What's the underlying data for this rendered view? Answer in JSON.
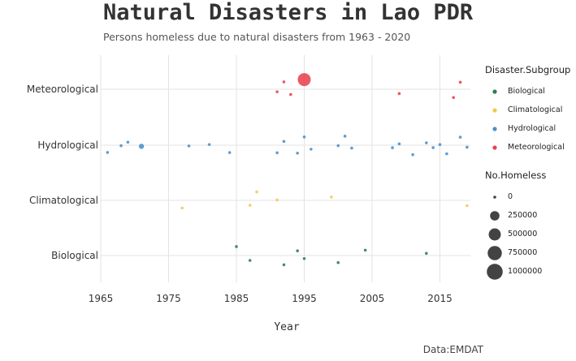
{
  "title": "Natural Disasters in Lao PDR",
  "subtitle": "Persons homeless due to natural disasters from 1963 - 2020",
  "caption": "Data:EMDAT",
  "colors": {
    "Biological": "#2e7d4f",
    "Climatological": "#f2c94c",
    "Hydrological": "#4a90c8",
    "Meteorological": "#e8424e"
  },
  "chart_data": {
    "type": "scatter",
    "xlabel": "Year",
    "ylabel": "",
    "xlim": [
      1965,
      2019
    ],
    "x_ticks": [
      1965,
      1975,
      1985,
      1995,
      2005,
      2015
    ],
    "categories": [
      "Biological",
      "Climatological",
      "Hydrological",
      "Meteorological"
    ],
    "grid": true,
    "legend_position": "right",
    "series": [
      {
        "name": "Meteorological",
        "points": [
          {
            "year": 1991,
            "homeless": 0
          },
          {
            "year": 1992,
            "homeless": 0
          },
          {
            "year": 1993,
            "homeless": 0
          },
          {
            "year": 1995,
            "homeless": 600000
          },
          {
            "year": 2009,
            "homeless": 0
          },
          {
            "year": 2017,
            "homeless": 0
          },
          {
            "year": 2018,
            "homeless": 0
          }
        ]
      },
      {
        "name": "Hydrological",
        "points": [
          {
            "year": 1966,
            "homeless": 0
          },
          {
            "year": 1968,
            "homeless": 0
          },
          {
            "year": 1969,
            "homeless": 0
          },
          {
            "year": 1971,
            "homeless": 30000
          },
          {
            "year": 1978,
            "homeless": 0
          },
          {
            "year": 1981,
            "homeless": 0
          },
          {
            "year": 1984,
            "homeless": 0
          },
          {
            "year": 1991,
            "homeless": 0
          },
          {
            "year": 1992,
            "homeless": 0
          },
          {
            "year": 1994,
            "homeless": 0
          },
          {
            "year": 1995,
            "homeless": 0
          },
          {
            "year": 1996,
            "homeless": 0
          },
          {
            "year": 2000,
            "homeless": 0
          },
          {
            "year": 2001,
            "homeless": 0
          },
          {
            "year": 2002,
            "homeless": 0
          },
          {
            "year": 2008,
            "homeless": 0
          },
          {
            "year": 2009,
            "homeless": 0
          },
          {
            "year": 2011,
            "homeless": 0
          },
          {
            "year": 2013,
            "homeless": 0
          },
          {
            "year": 2014,
            "homeless": 0
          },
          {
            "year": 2015,
            "homeless": 0
          },
          {
            "year": 2016,
            "homeless": 0
          },
          {
            "year": 2018,
            "homeless": 0
          },
          {
            "year": 2019,
            "homeless": 0
          }
        ]
      },
      {
        "name": "Climatological",
        "points": [
          {
            "year": 1977,
            "homeless": 0
          },
          {
            "year": 1987,
            "homeless": 0
          },
          {
            "year": 1988,
            "homeless": 0
          },
          {
            "year": 1991,
            "homeless": 0
          },
          {
            "year": 1999,
            "homeless": 0
          },
          {
            "year": 2019,
            "homeless": 0
          }
        ]
      },
      {
        "name": "Biological",
        "points": [
          {
            "year": 1985,
            "homeless": 0
          },
          {
            "year": 1987,
            "homeless": 0
          },
          {
            "year": 1992,
            "homeless": 0
          },
          {
            "year": 1994,
            "homeless": 0
          },
          {
            "year": 1995,
            "homeless": 0
          },
          {
            "year": 2000,
            "homeless": 0
          },
          {
            "year": 2004,
            "homeless": 0
          },
          {
            "year": 2013,
            "homeless": 0
          }
        ]
      }
    ],
    "legend_color_title": "Disaster.Subgroup",
    "legend_size_title": "No.Homeless",
    "size_breaks": [
      0,
      250000,
      500000,
      750000,
      1000000
    ],
    "size_labels": [
      "0",
      "250000",
      "500000",
      "750000",
      "1000000"
    ]
  }
}
